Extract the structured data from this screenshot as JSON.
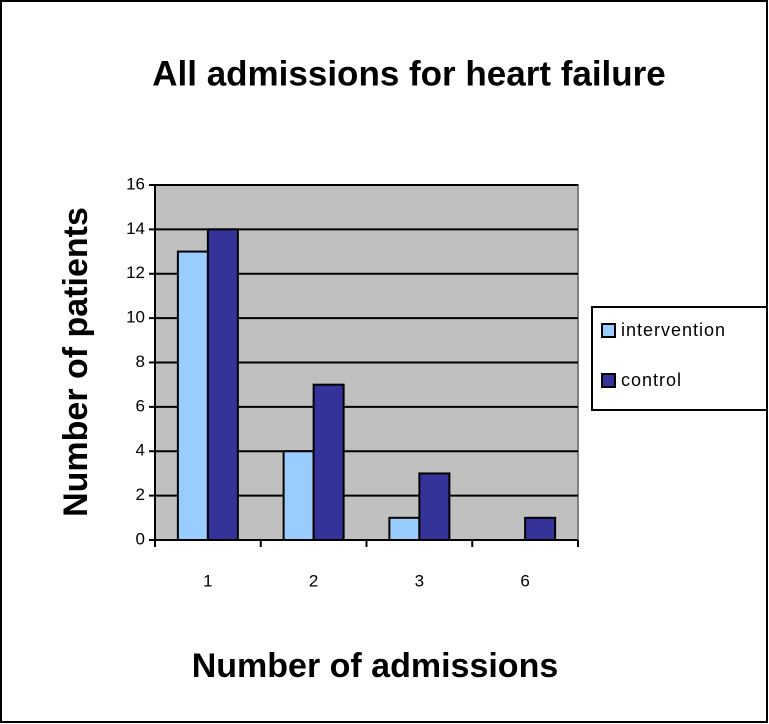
{
  "chart_data": {
    "type": "bar",
    "title": "All admissions for heart failure",
    "x_label": "Number of admissions",
    "y_label": "Number of patients",
    "categories": [
      "1",
      "2",
      "3",
      "6"
    ],
    "series": [
      {
        "name": "intervention",
        "color": "#99ccff",
        "values": [
          13,
          4,
          1,
          0
        ]
      },
      {
        "name": "control",
        "color": "#333399",
        "values": [
          14,
          7,
          3,
          1
        ]
      }
    ],
    "ylim": [
      0,
      16
    ],
    "yticks": [
      0,
      2,
      4,
      6,
      8,
      10,
      12,
      14,
      16
    ],
    "grid": true,
    "legend": "right"
  }
}
